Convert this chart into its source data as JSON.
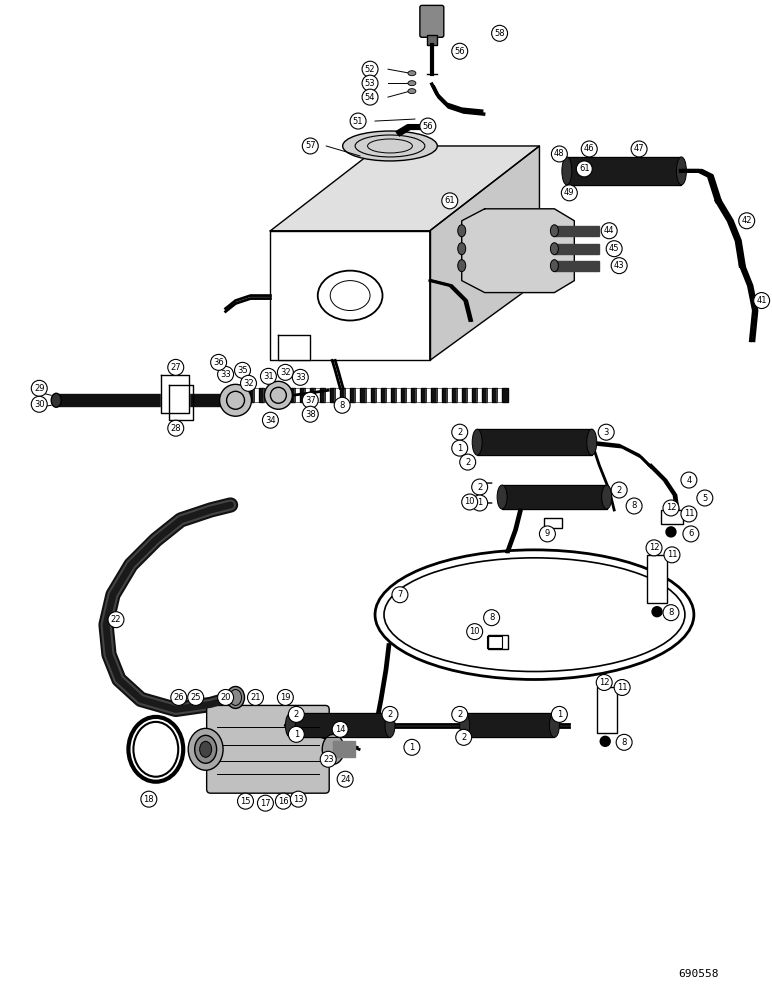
{
  "background_color": "#ffffff",
  "diagram_color": "#000000",
  "figure_number": "690558",
  "fig_width": 7.72,
  "fig_height": 10.0,
  "dpi": 100
}
